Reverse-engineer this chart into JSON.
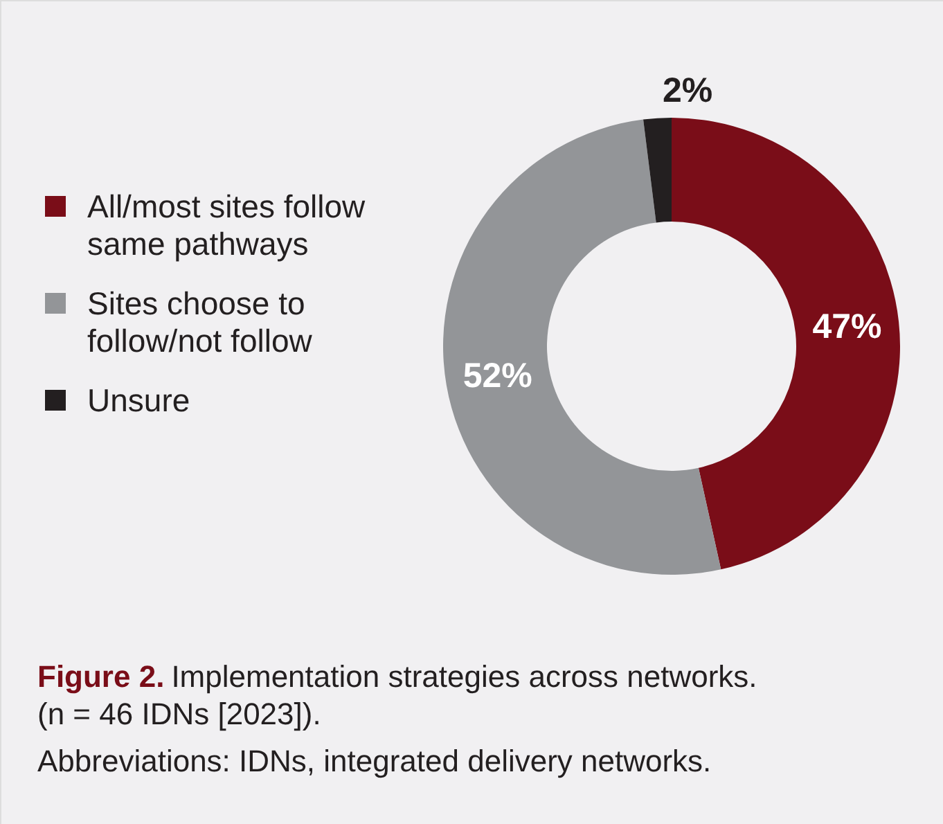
{
  "chart_data": {
    "type": "donut",
    "title": "Figure 2. Implementation strategies across networks. (n = 46 IDNs [2023]).",
    "annotations": [
      "Abbreviations: IDNs, integrated delivery networks."
    ],
    "categories": [
      "All/most sites follow same pathways",
      "Sites choose to follow/not follow",
      "Unsure"
    ],
    "values": [
      47,
      52,
      2
    ],
    "colors": [
      "#7a0d18",
      "#939598",
      "#231f20"
    ],
    "value_labels": [
      "47%",
      "52%",
      "2%"
    ],
    "legend": "left"
  }
}
